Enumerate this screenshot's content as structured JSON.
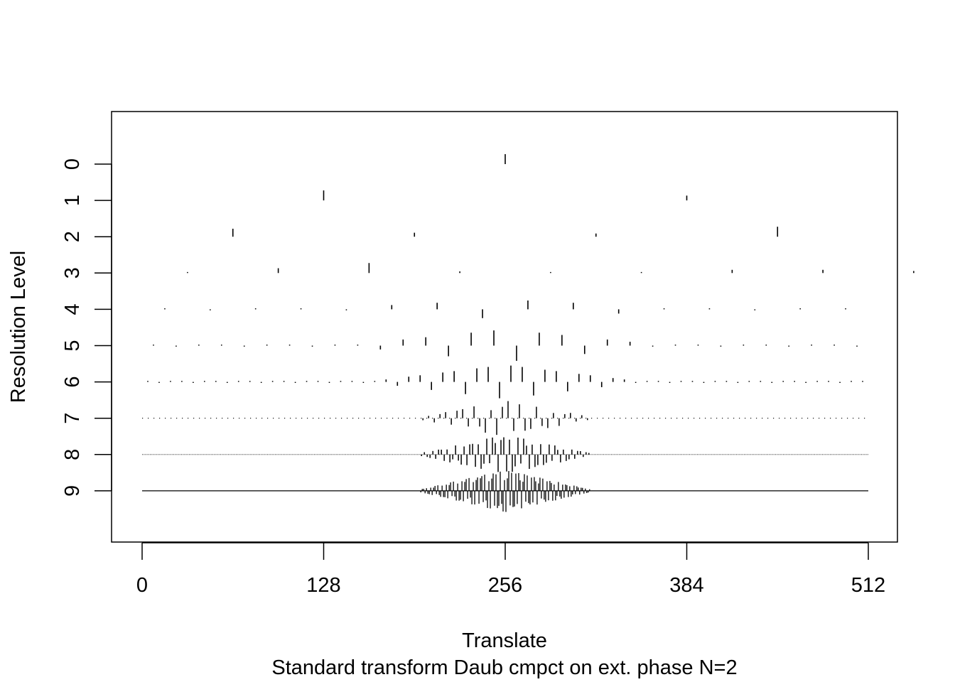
{
  "chart_data": {
    "type": "wavelet-coefficient-plot",
    "title": "",
    "xlabel": "Translate",
    "ylabel": "Resolution Level",
    "subtitle": "Standard transform Daub cmpct on ext. phase N=2",
    "xlim": [
      0,
      512
    ],
    "x_ticks": [
      0,
      128,
      256,
      384,
      512
    ],
    "x_tick_labels": [
      "0",
      "128",
      "256",
      "384",
      "512"
    ],
    "levels": [
      0,
      1,
      2,
      3,
      4,
      5,
      6,
      7,
      8,
      9
    ],
    "level_labels": [
      "0",
      "1",
      "2",
      "3",
      "4",
      "5",
      "6",
      "7",
      "8",
      "9"
    ],
    "grid": false,
    "legend": "none",
    "coefficients": [
      {
        "level": 0,
        "values": [
          0.5
        ]
      },
      {
        "level": 1,
        "values": [
          0.5,
          0.24
        ]
      },
      {
        "level": 2,
        "values": [
          0.4,
          0.2,
          0.16,
          0.5
        ]
      },
      {
        "level": 3,
        "values": [
          0.02,
          0.24,
          0.5,
          0.08,
          0.0,
          0.0,
          0.16,
          0.16,
          0.1
        ]
      }
    ]
  }
}
